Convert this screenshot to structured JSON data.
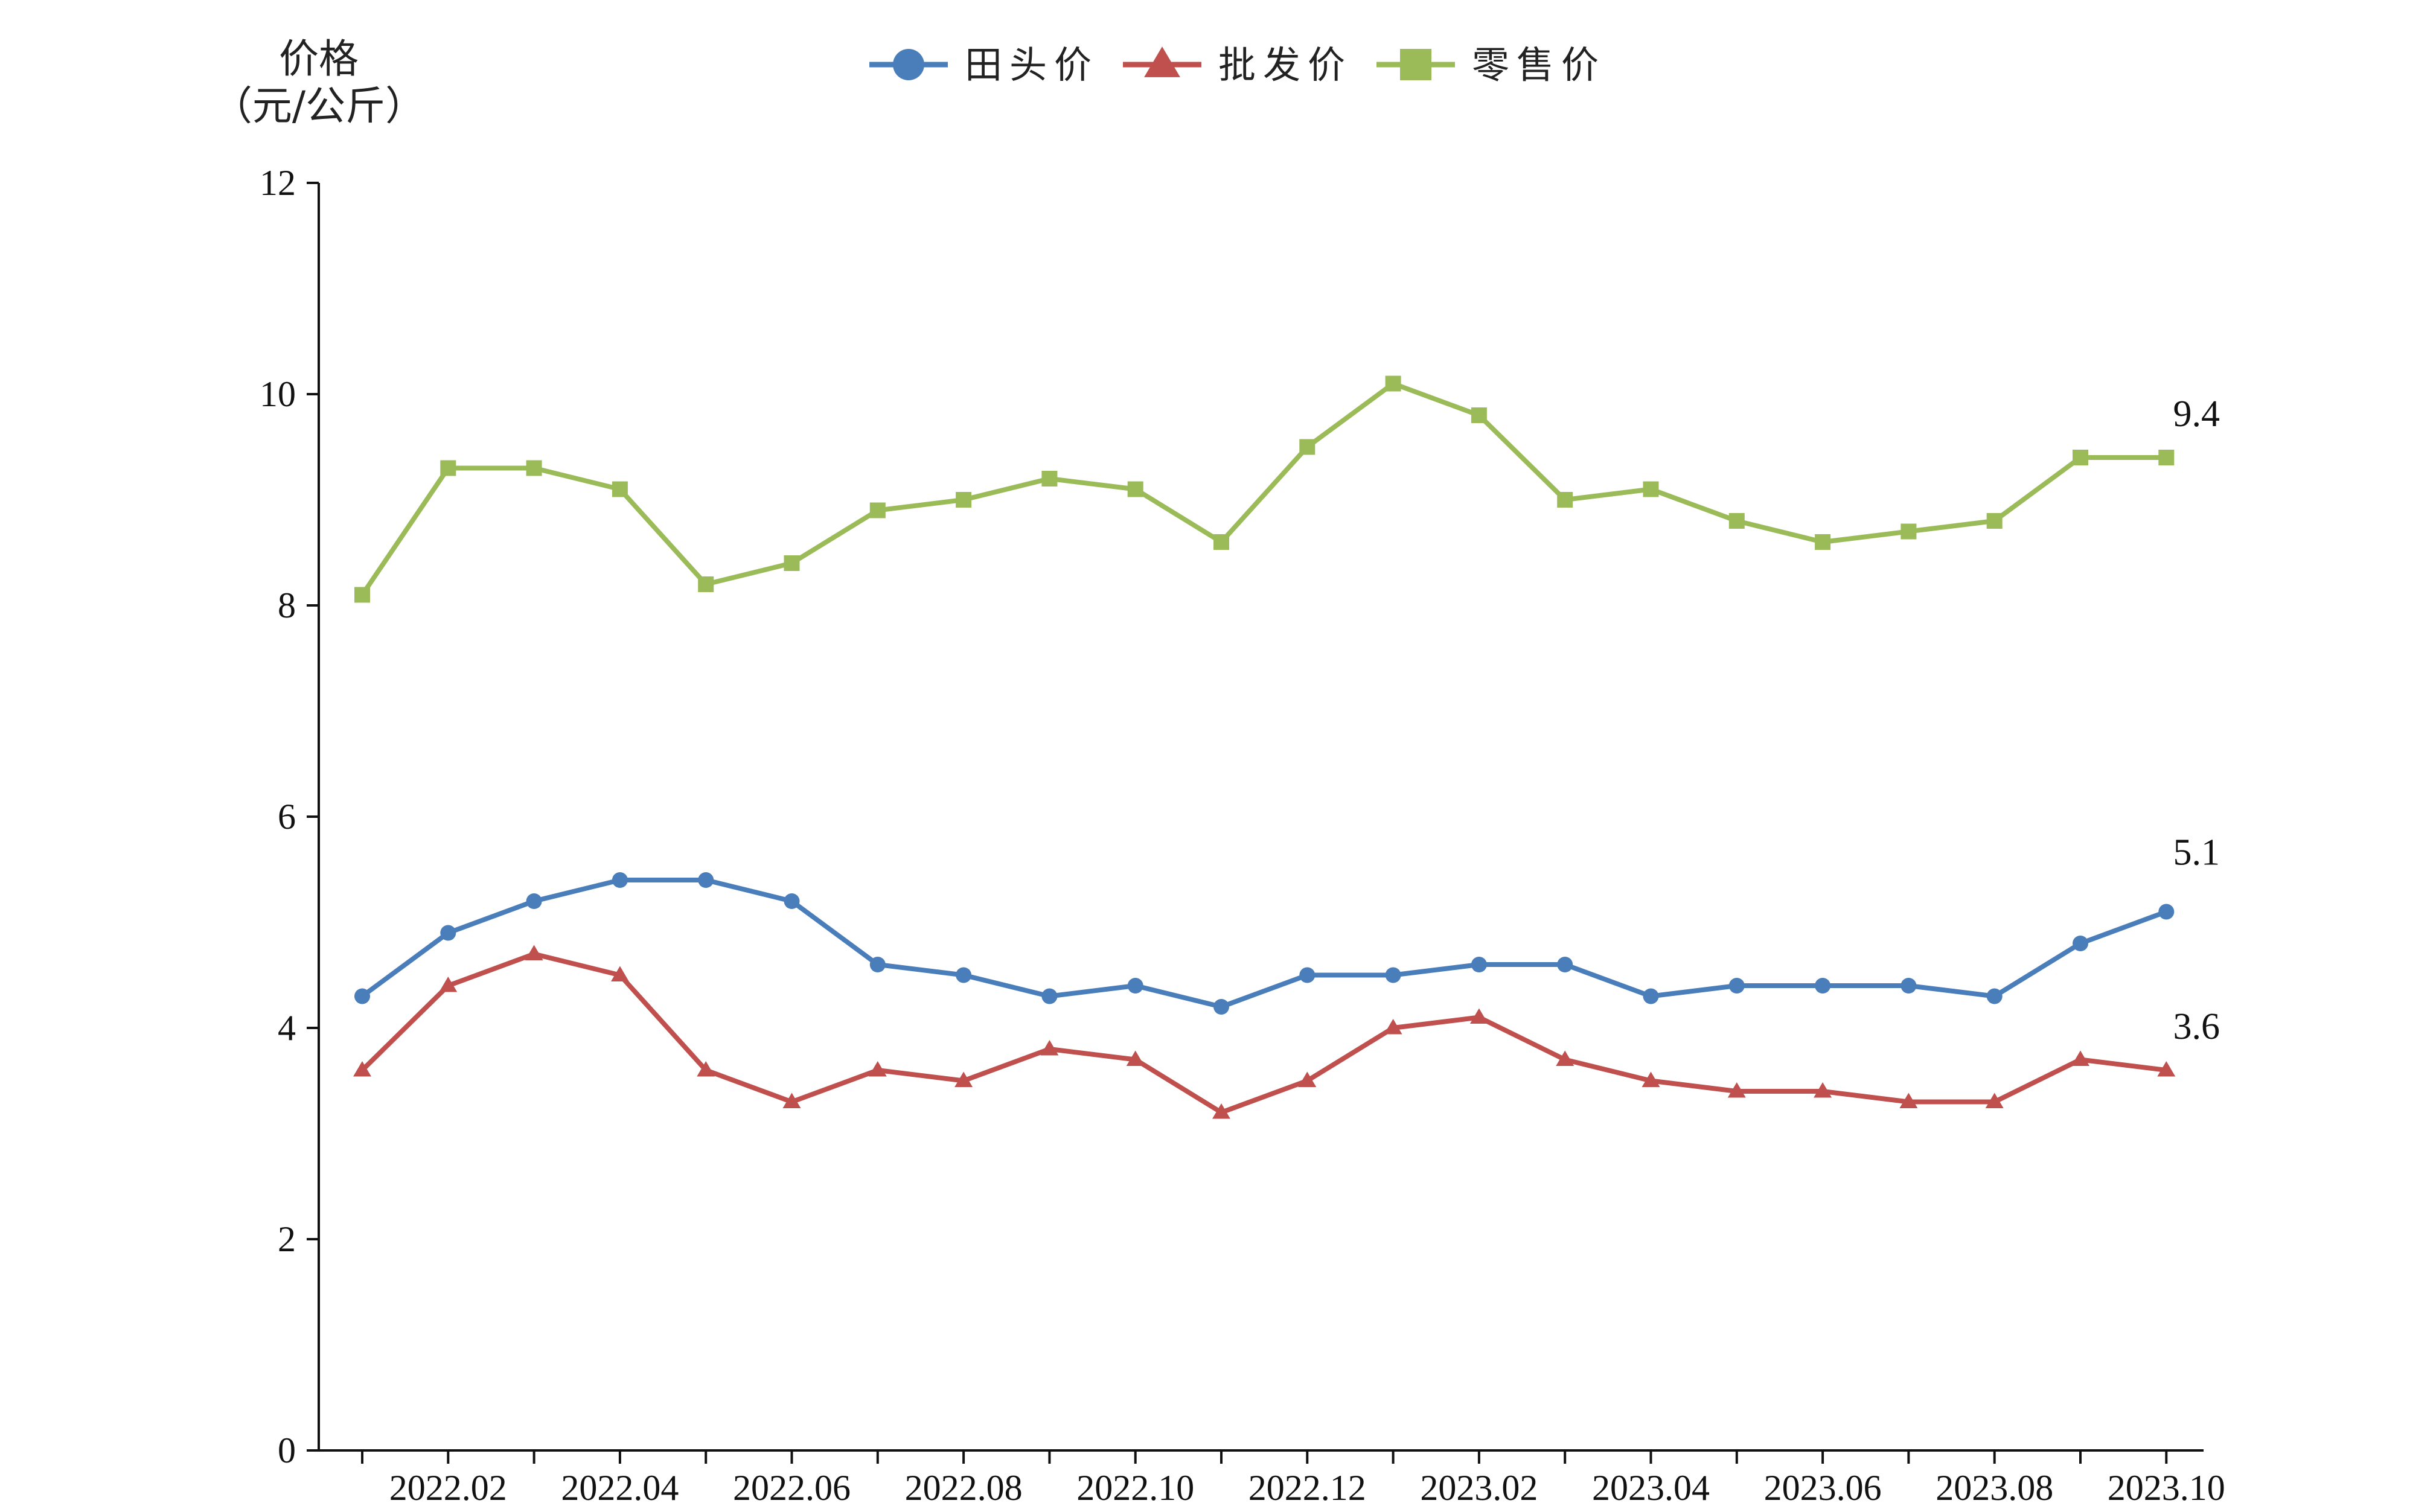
{
  "chart_data": {
    "type": "line",
    "ylabel_line1": "价格",
    "ylabel_line2": "（元/公斤）",
    "ylim": [
      0,
      12
    ],
    "yticks": [
      0,
      2,
      4,
      6,
      8,
      10,
      12
    ],
    "grid": false,
    "legend_position": "top-center",
    "x": [
      "2022.01",
      "2022.02",
      "2022.03",
      "2022.04",
      "2022.05",
      "2022.06",
      "2022.07",
      "2022.08",
      "2022.09",
      "2022.10",
      "2022.11",
      "2022.12",
      "2023.01",
      "2023.02",
      "2023.03",
      "2023.04",
      "2023.05",
      "2023.06",
      "2023.07",
      "2023.08",
      "2023.09",
      "2023.10"
    ],
    "x_tick_labels": [
      "",
      "2022.02",
      "",
      "2022.04",
      "",
      "2022.06",
      "",
      "2022.08",
      "",
      "2022.10",
      "",
      "2022.12",
      "",
      "2023.02",
      "",
      "2023.04",
      "",
      "2023.06",
      "",
      "2023.08",
      "",
      "2023.10"
    ],
    "series": [
      {
        "name": "田头价",
        "color": "#4a7ebb",
        "marker": "circle",
        "values": [
          4.3,
          4.9,
          5.2,
          5.4,
          5.4,
          5.2,
          4.6,
          4.5,
          4.3,
          4.4,
          4.2,
          4.5,
          4.5,
          4.6,
          4.6,
          4.3,
          4.4,
          4.4,
          4.4,
          4.3,
          4.8,
          5.1
        ],
        "end_label": "5.1"
      },
      {
        "name": "批发价",
        "color": "#c0504d",
        "marker": "triangle",
        "values": [
          3.6,
          4.4,
          4.7,
          4.5,
          3.6,
          3.3,
          3.6,
          3.5,
          3.8,
          3.7,
          3.2,
          3.5,
          4.0,
          4.1,
          3.7,
          3.5,
          3.4,
          3.4,
          3.3,
          3.3,
          3.7,
          3.6
        ],
        "end_label": "3.6"
      },
      {
        "name": "零售价",
        "color": "#9bbb59",
        "marker": "square",
        "values": [
          8.1,
          9.3,
          9.3,
          9.1,
          8.2,
          8.4,
          8.9,
          9.0,
          9.2,
          9.1,
          8.6,
          9.5,
          10.1,
          9.8,
          9.0,
          9.1,
          8.8,
          8.6,
          8.7,
          8.8,
          9.4,
          9.4
        ],
        "end_label": "9.4"
      }
    ]
  }
}
